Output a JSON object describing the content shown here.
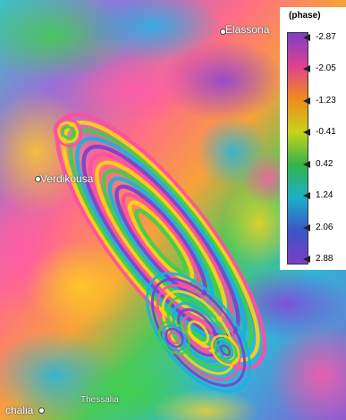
{
  "map": {
    "places": [
      {
        "name": "Elassona",
        "dot": true
      },
      {
        "name": "Verdikousa",
        "dot": true
      },
      {
        "name": "Thessalia",
        "dot": false
      },
      {
        "name": "chalia",
        "dot": true
      }
    ]
  },
  "legend": {
    "title": "(phase)",
    "ticks": [
      "-2.87",
      "-2.05",
      "-1.23",
      "-0.41",
      "0.42",
      "1.24",
      "2.06",
      "2.88"
    ],
    "colors": [
      "#7b3fc4",
      "#e04090",
      "#f08a1a",
      "#c9d21a",
      "#32b44a",
      "#1eb0c8",
      "#3a55c8",
      "#7b3fc4"
    ]
  },
  "interferogram": {
    "fringe_colors": [
      "#ff4fa0",
      "#ffd11a",
      "#3ccf4a",
      "#1ab0e0",
      "#7a3fd0"
    ]
  }
}
